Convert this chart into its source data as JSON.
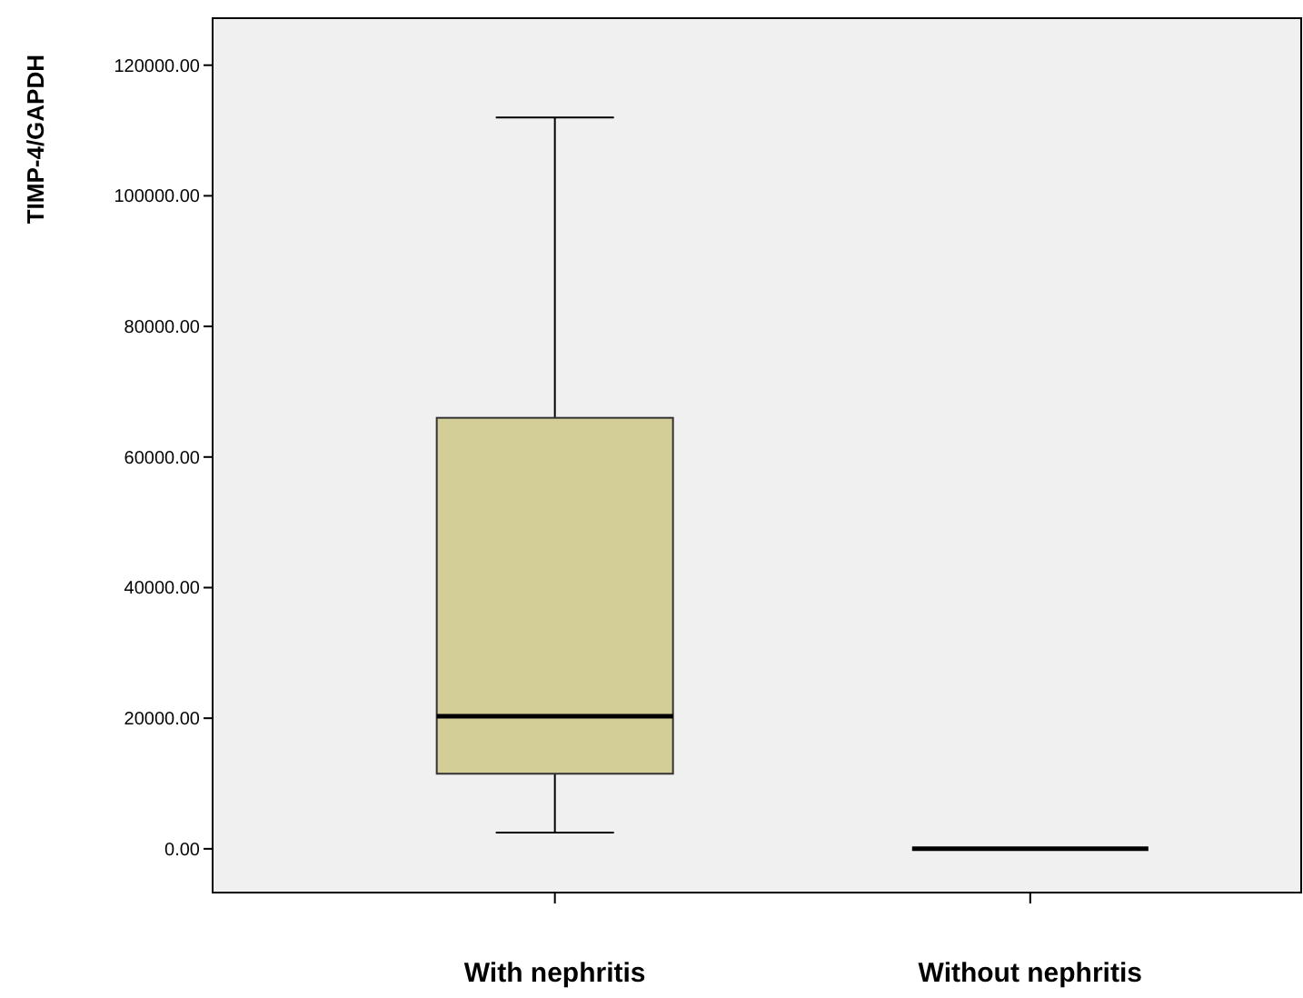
{
  "chart_data": {
    "type": "box",
    "ylabel": "TIMP-4/GAPDH",
    "categories": [
      "With nephritis",
      "Without nephritis"
    ],
    "boxes": [
      {
        "low": 2500,
        "q1": 11500,
        "median": 20300,
        "q3": 66000,
        "high": 112000
      },
      {
        "low": 0,
        "q1": 0,
        "median": 0,
        "q3": 0,
        "high": 0
      }
    ],
    "color": "#d3ce97",
    "ylim": [
      -6700,
      127200
    ],
    "yticks": [
      {
        "value": 0,
        "label": "0.00"
      },
      {
        "value": 20000,
        "label": "20000.00"
      },
      {
        "value": 40000,
        "label": "40000.00"
      },
      {
        "value": 60000,
        "label": "60000.00"
      },
      {
        "value": 80000,
        "label": "80000.00"
      },
      {
        "value": 100000,
        "label": "100000.00"
      },
      {
        "value": 120000,
        "label": "120000.00"
      }
    ]
  }
}
